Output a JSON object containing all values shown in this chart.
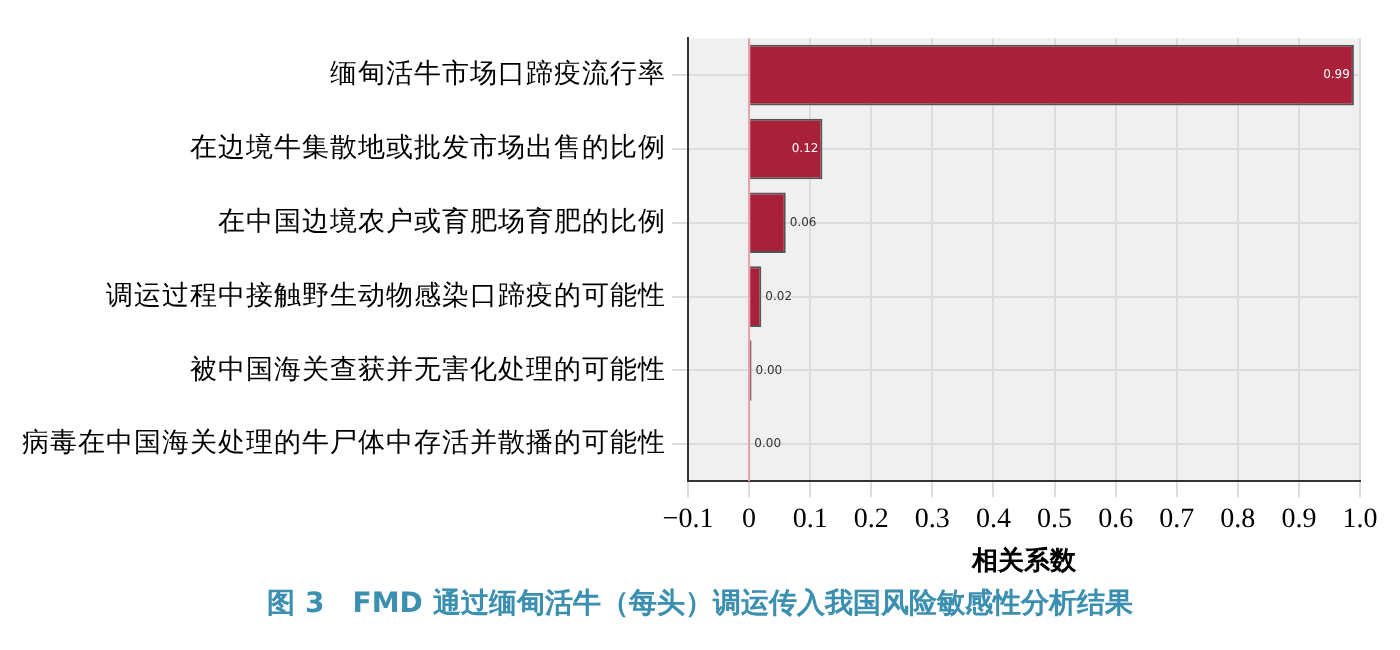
{
  "chart_data": {
    "type": "bar",
    "orientation": "horizontal",
    "title": "图 3　FMD 通过缅甸活牛（每头）调运传入我国风险敏感性分析结果",
    "xlabel": "相关系数",
    "categories": [
      "缅甸活牛市场口蹄疫流行率",
      "在边境牛集散地或批发市场出售的比例",
      "在中国边境农户或育肥场育肥的比例",
      "调运过程中接触野生动物感染口蹄疫的可能性",
      "被中国海关查获并无害化处理的可能性",
      "病毒在中国海关处理的牛尸体中存活并散播的可能性"
    ],
    "values": [
      0.99,
      0.12,
      0.06,
      0.02,
      0.004,
      0.002
    ],
    "value_labels": [
      "0.99",
      "0.12",
      "0.06",
      "0.02",
      "0.00",
      "0.00"
    ],
    "colors": [
      "#a82039",
      "#a82039",
      "#a82039",
      "#a82039",
      "#8a1a30",
      "#808080"
    ],
    "xlim": [
      -0.1,
      1.0
    ],
    "xticks": [
      {
        "value": -0.1,
        "label": "−0.1"
      },
      0,
      0.1,
      0.2,
      0.3,
      0.4,
      0.5,
      0.6,
      0.7,
      0.8,
      0.9,
      {
        "value": 1.0,
        "label": "1.0"
      }
    ],
    "ref_lines": [
      {
        "axis": "x",
        "value": 0,
        "color": "#e8a0a8"
      }
    ],
    "grid": true,
    "legend": false
  }
}
